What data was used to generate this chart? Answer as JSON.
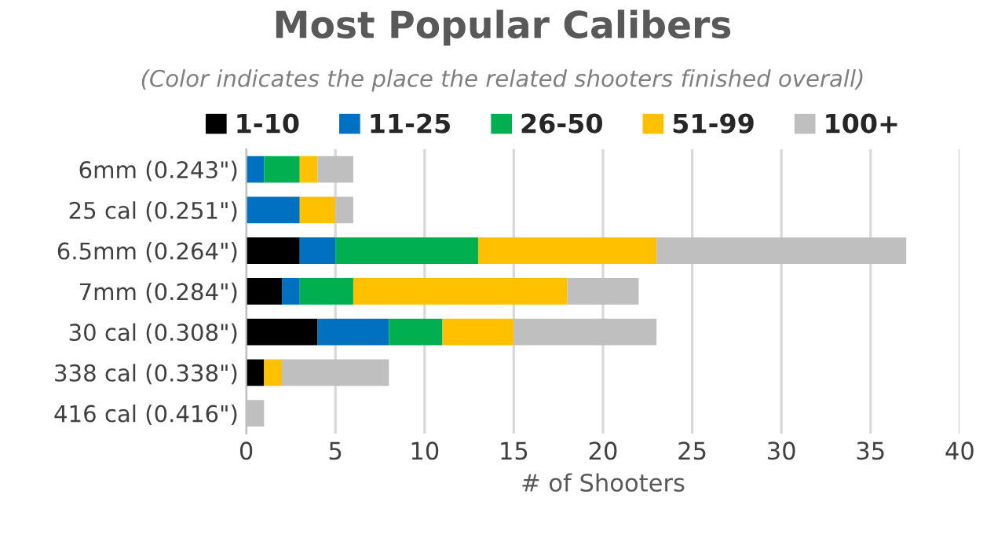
{
  "chart_data": {
    "type": "bar",
    "orientation": "horizontal",
    "stacked": true,
    "title": "Most Popular Calibers",
    "subtitle": "(Color indicates the place the related shooters finished overall)",
    "xlabel": "# of Shooters",
    "categories": [
      "6mm (0.243\")",
      "25 cal (0.251\")",
      "6.5mm (0.264\")",
      "7mm (0.284\")",
      "30 cal (0.308\")",
      "338 cal (0.338\")",
      "416 cal (0.416\")"
    ],
    "series": [
      {
        "name": "1-10",
        "color": "#000000",
        "values": [
          0,
          0,
          3,
          2,
          4,
          1,
          0
        ]
      },
      {
        "name": "11-25",
        "color": "#0070c0",
        "values": [
          1,
          3,
          2,
          1,
          4,
          0,
          0
        ]
      },
      {
        "name": "26-50",
        "color": "#00b050",
        "values": [
          2,
          0,
          8,
          3,
          3,
          0,
          0
        ]
      },
      {
        "name": "51-99",
        "color": "#ffc000",
        "values": [
          1,
          2,
          10,
          12,
          4,
          1,
          0
        ]
      },
      {
        "name": "100+",
        "color": "#bfbfbf",
        "values": [
          2,
          1,
          14,
          4,
          8,
          6,
          1
        ]
      }
    ],
    "xlim": [
      0,
      40
    ],
    "xticks": [
      0,
      5,
      10,
      15,
      20,
      25,
      30,
      35,
      40
    ],
    "grid": "x",
    "legend": "top"
  }
}
